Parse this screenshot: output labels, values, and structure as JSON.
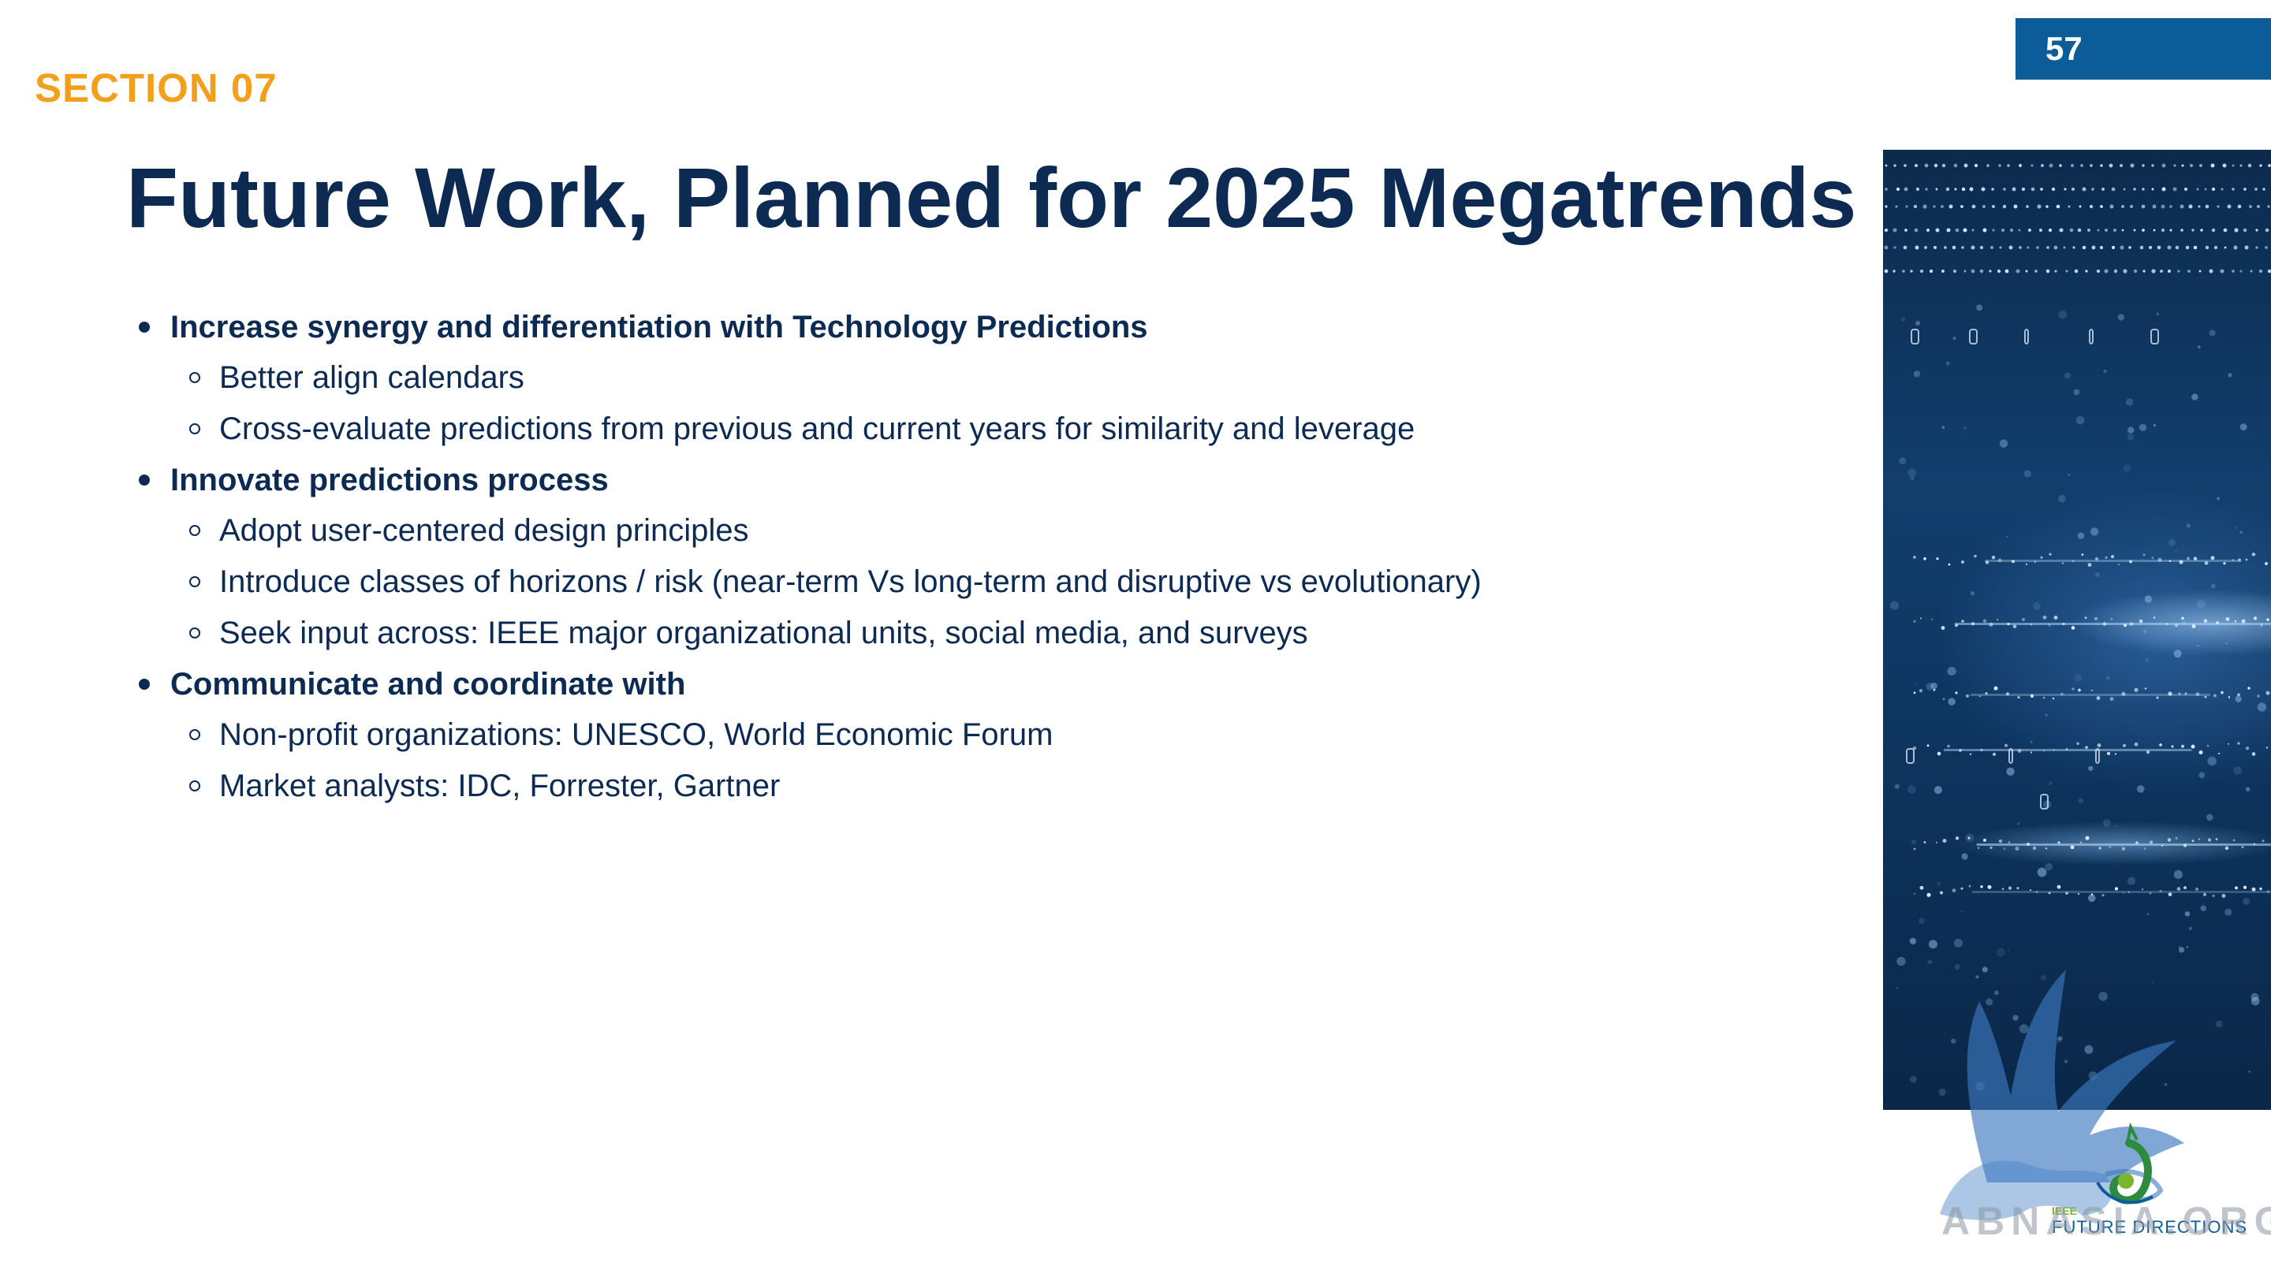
{
  "page_number": "57",
  "section_label": "SECTION 07",
  "title": "Future Work, Planned for 2025 Megatrends",
  "bullets": [
    {
      "text": "Increase synergy and differentiation with Technology Predictions",
      "sub": [
        "Better align calendars",
        "Cross-evaluate predictions from previous and current years for similarity and leverage"
      ]
    },
    {
      "text": "Innovate predictions process",
      "sub": [
        "Adopt user-centered design principles",
        "Introduce classes of horizons / risk  (near-term Vs long-term and disruptive vs evolutionary)",
        "Seek input across: IEEE major organizational units, social media, and surveys"
      ]
    },
    {
      "text": "Communicate and coordinate with",
      "sub": [
        "Non-profit organizations: UNESCO, World Economic Forum",
        "Market analysts: IDC, Forrester, Gartner"
      ]
    }
  ],
  "logo": {
    "small_text": "IEEE",
    "text": "FUTURE DIRECTIONS"
  },
  "watermark_text": "ABNASIA.ORG",
  "colors": {
    "accent": "#f2a01c",
    "title": "#0c2a52",
    "badge": "#0d5c9a",
    "logo_green": "#7bb52e"
  }
}
